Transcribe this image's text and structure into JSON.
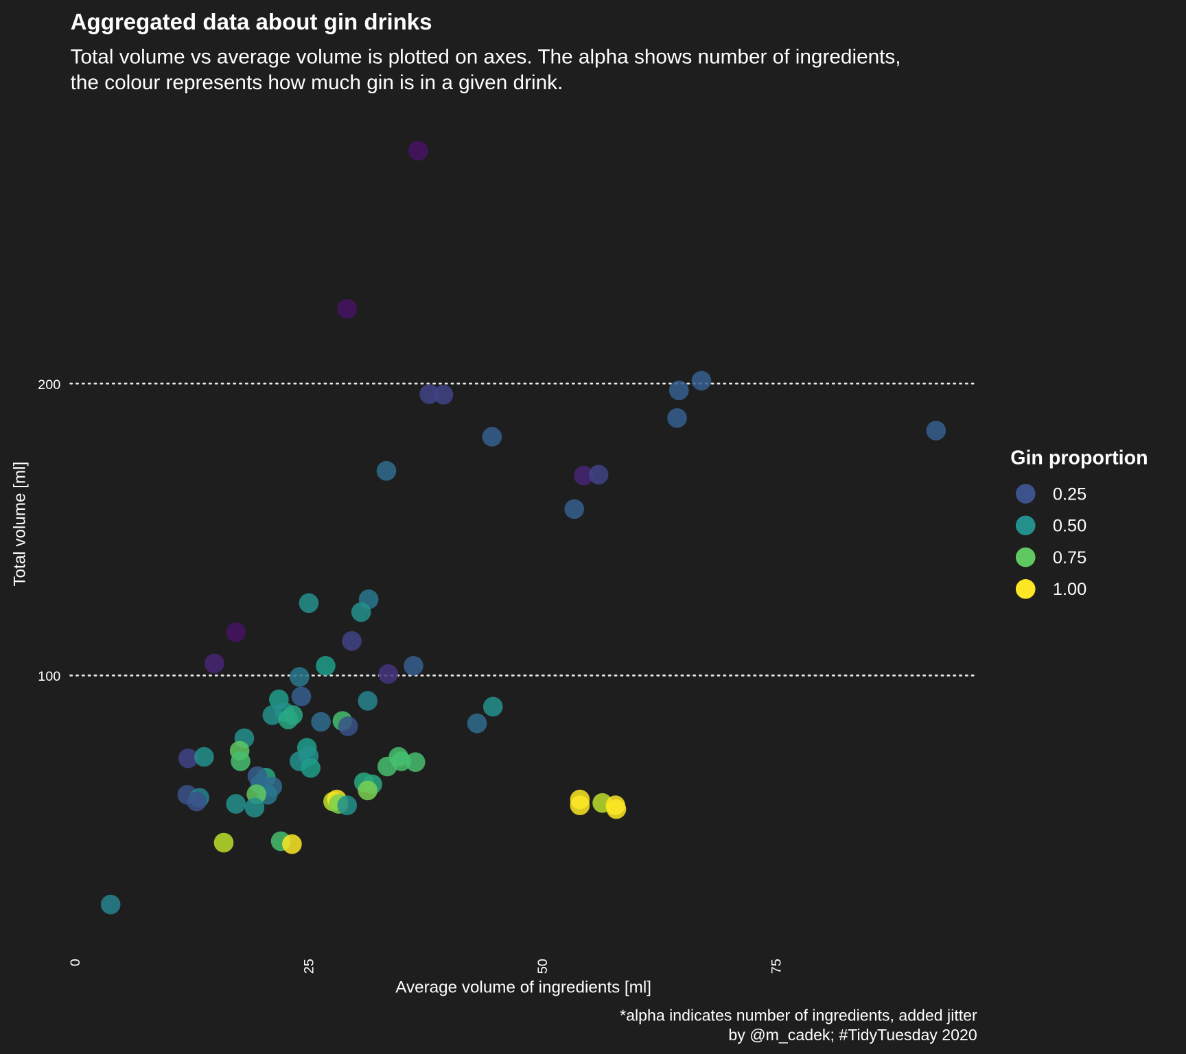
{
  "chart_data": {
    "type": "scatter",
    "title": "Aggregated data about gin drinks",
    "subtitle_lines": [
      "Total volume vs average volume is plotted on axes. The alpha shows number of ingredients,",
      "the colour represents how much gin is in a given drink."
    ],
    "xlabel": "Average volume of ingredients [ml]",
    "ylabel": "Total volume [ml]",
    "caption_lines": [
      "*alpha indicates number of ingredients, added jitter",
      "by @m_cadek; #TidyTuesday 2020"
    ],
    "xlim": [
      -0.5,
      96.5
    ],
    "ylim": [
      5,
      290
    ],
    "xticks": [
      0,
      25,
      50,
      75
    ],
    "xtick_labels": [
      "0",
      "25",
      "50",
      "75"
    ],
    "yticks": [
      100,
      200
    ],
    "ytick_labels": [
      "100",
      "200"
    ],
    "grid": "dotted horizontal lines at y ticks",
    "colormap": "viridis",
    "background": "#1e1e1e",
    "legend": {
      "title": "Gin proportion",
      "placement": "right",
      "entries": [
        {
          "label": "0.25",
          "value": 0.25
        },
        {
          "label": "0.50",
          "value": 0.5
        },
        {
          "label": "0.75",
          "value": 0.75
        },
        {
          "label": "1.00",
          "value": 1.0
        }
      ]
    },
    "points": [
      {
        "x": 36.7,
        "y": 279.8,
        "gin": 0.05
      },
      {
        "x": 29.1,
        "y": 225.6,
        "gin": 0.05
      },
      {
        "x": 37.9,
        "y": 196.4,
        "gin": 0.2
      },
      {
        "x": 39.4,
        "y": 196.2,
        "gin": 0.2
      },
      {
        "x": 67.0,
        "y": 201.0,
        "gin": 0.3
      },
      {
        "x": 64.6,
        "y": 197.7,
        "gin": 0.3
      },
      {
        "x": 64.4,
        "y": 188.2,
        "gin": 0.3
      },
      {
        "x": 92.1,
        "y": 183.9,
        "gin": 0.3
      },
      {
        "x": 44.6,
        "y": 181.8,
        "gin": 0.3
      },
      {
        "x": 33.3,
        "y": 170.1,
        "gin": 0.35
      },
      {
        "x": 54.4,
        "y": 168.5,
        "gin": 0.1
      },
      {
        "x": 56.0,
        "y": 168.8,
        "gin": 0.2
      },
      {
        "x": 53.4,
        "y": 157.0,
        "gin": 0.3
      },
      {
        "x": 25.0,
        "y": 124.8,
        "gin": 0.5
      },
      {
        "x": 31.4,
        "y": 126.1,
        "gin": 0.4
      },
      {
        "x": 30.6,
        "y": 121.7,
        "gin": 0.5
      },
      {
        "x": 17.2,
        "y": 114.8,
        "gin": 0.05
      },
      {
        "x": 29.6,
        "y": 111.8,
        "gin": 0.2
      },
      {
        "x": 14.9,
        "y": 104.1,
        "gin": 0.1
      },
      {
        "x": 26.8,
        "y": 103.3,
        "gin": 0.55
      },
      {
        "x": 36.2,
        "y": 103.3,
        "gin": 0.3
      },
      {
        "x": 33.5,
        "y": 100.5,
        "gin": 0.15
      },
      {
        "x": 24.0,
        "y": 99.5,
        "gin": 0.4
      },
      {
        "x": 24.2,
        "y": 92.8,
        "gin": 0.3
      },
      {
        "x": 21.8,
        "y": 91.8,
        "gin": 0.55
      },
      {
        "x": 31.3,
        "y": 91.3,
        "gin": 0.45
      },
      {
        "x": 44.7,
        "y": 89.3,
        "gin": 0.5
      },
      {
        "x": 21.1,
        "y": 86.4,
        "gin": 0.5
      },
      {
        "x": 22.4,
        "y": 87.5,
        "gin": 0.5
      },
      {
        "x": 23.3,
        "y": 86.4,
        "gin": 0.6
      },
      {
        "x": 22.8,
        "y": 84.9,
        "gin": 0.6
      },
      {
        "x": 28.6,
        "y": 84.4,
        "gin": 0.7
      },
      {
        "x": 26.3,
        "y": 84.1,
        "gin": 0.35
      },
      {
        "x": 29.2,
        "y": 82.6,
        "gin": 0.25
      },
      {
        "x": 43.0,
        "y": 83.6,
        "gin": 0.35
      },
      {
        "x": 18.1,
        "y": 78.5,
        "gin": 0.5
      },
      {
        "x": 24.8,
        "y": 75.2,
        "gin": 0.55
      },
      {
        "x": 17.6,
        "y": 74.2,
        "gin": 0.75
      },
      {
        "x": 12.1,
        "y": 71.6,
        "gin": 0.2
      },
      {
        "x": 13.8,
        "y": 72.1,
        "gin": 0.5
      },
      {
        "x": 17.7,
        "y": 70.6,
        "gin": 0.7
      },
      {
        "x": 25.0,
        "y": 72.4,
        "gin": 0.5
      },
      {
        "x": 24.0,
        "y": 70.6,
        "gin": 0.5
      },
      {
        "x": 25.2,
        "y": 68.3,
        "gin": 0.55
      },
      {
        "x": 34.6,
        "y": 72.1,
        "gin": 0.7
      },
      {
        "x": 34.9,
        "y": 70.6,
        "gin": 0.7
      },
      {
        "x": 36.4,
        "y": 70.3,
        "gin": 0.7
      },
      {
        "x": 33.4,
        "y": 68.8,
        "gin": 0.7
      },
      {
        "x": 30.9,
        "y": 63.4,
        "gin": 0.6
      },
      {
        "x": 31.8,
        "y": 62.7,
        "gin": 0.6
      },
      {
        "x": 31.3,
        "y": 60.6,
        "gin": 0.8
      },
      {
        "x": 20.4,
        "y": 65.0,
        "gin": 0.6
      },
      {
        "x": 19.5,
        "y": 65.5,
        "gin": 0.3
      },
      {
        "x": 19.8,
        "y": 62.7,
        "gin": 0.35
      },
      {
        "x": 21.1,
        "y": 61.9,
        "gin": 0.35
      },
      {
        "x": 20.6,
        "y": 59.1,
        "gin": 0.4
      },
      {
        "x": 19.4,
        "y": 59.3,
        "gin": 0.75
      },
      {
        "x": 12.0,
        "y": 59.1,
        "gin": 0.25
      },
      {
        "x": 13.3,
        "y": 58.1,
        "gin": 0.45
      },
      {
        "x": 13.0,
        "y": 56.8,
        "gin": 0.25
      },
      {
        "x": 17.2,
        "y": 56.0,
        "gin": 0.5
      },
      {
        "x": 19.2,
        "y": 54.7,
        "gin": 0.5
      },
      {
        "x": 27.6,
        "y": 56.8,
        "gin": 0.9
      },
      {
        "x": 28.0,
        "y": 57.5,
        "gin": 1.0
      },
      {
        "x": 28.2,
        "y": 56.0,
        "gin": 0.8
      },
      {
        "x": 29.1,
        "y": 55.5,
        "gin": 0.5
      },
      {
        "x": 54.0,
        "y": 57.5,
        "gin": 1.0
      },
      {
        "x": 54.0,
        "y": 55.5,
        "gin": 1.0
      },
      {
        "x": 56.4,
        "y": 56.3,
        "gin": 0.9
      },
      {
        "x": 57.8,
        "y": 55.5,
        "gin": 1.0
      },
      {
        "x": 57.9,
        "y": 54.2,
        "gin": 1.0
      },
      {
        "x": 15.9,
        "y": 42.7,
        "gin": 0.9
      },
      {
        "x": 22.0,
        "y": 43.2,
        "gin": 0.7
      },
      {
        "x": 23.2,
        "y": 42.2,
        "gin": 1.0
      },
      {
        "x": 3.8,
        "y": 21.5,
        "gin": 0.45
      }
    ]
  }
}
